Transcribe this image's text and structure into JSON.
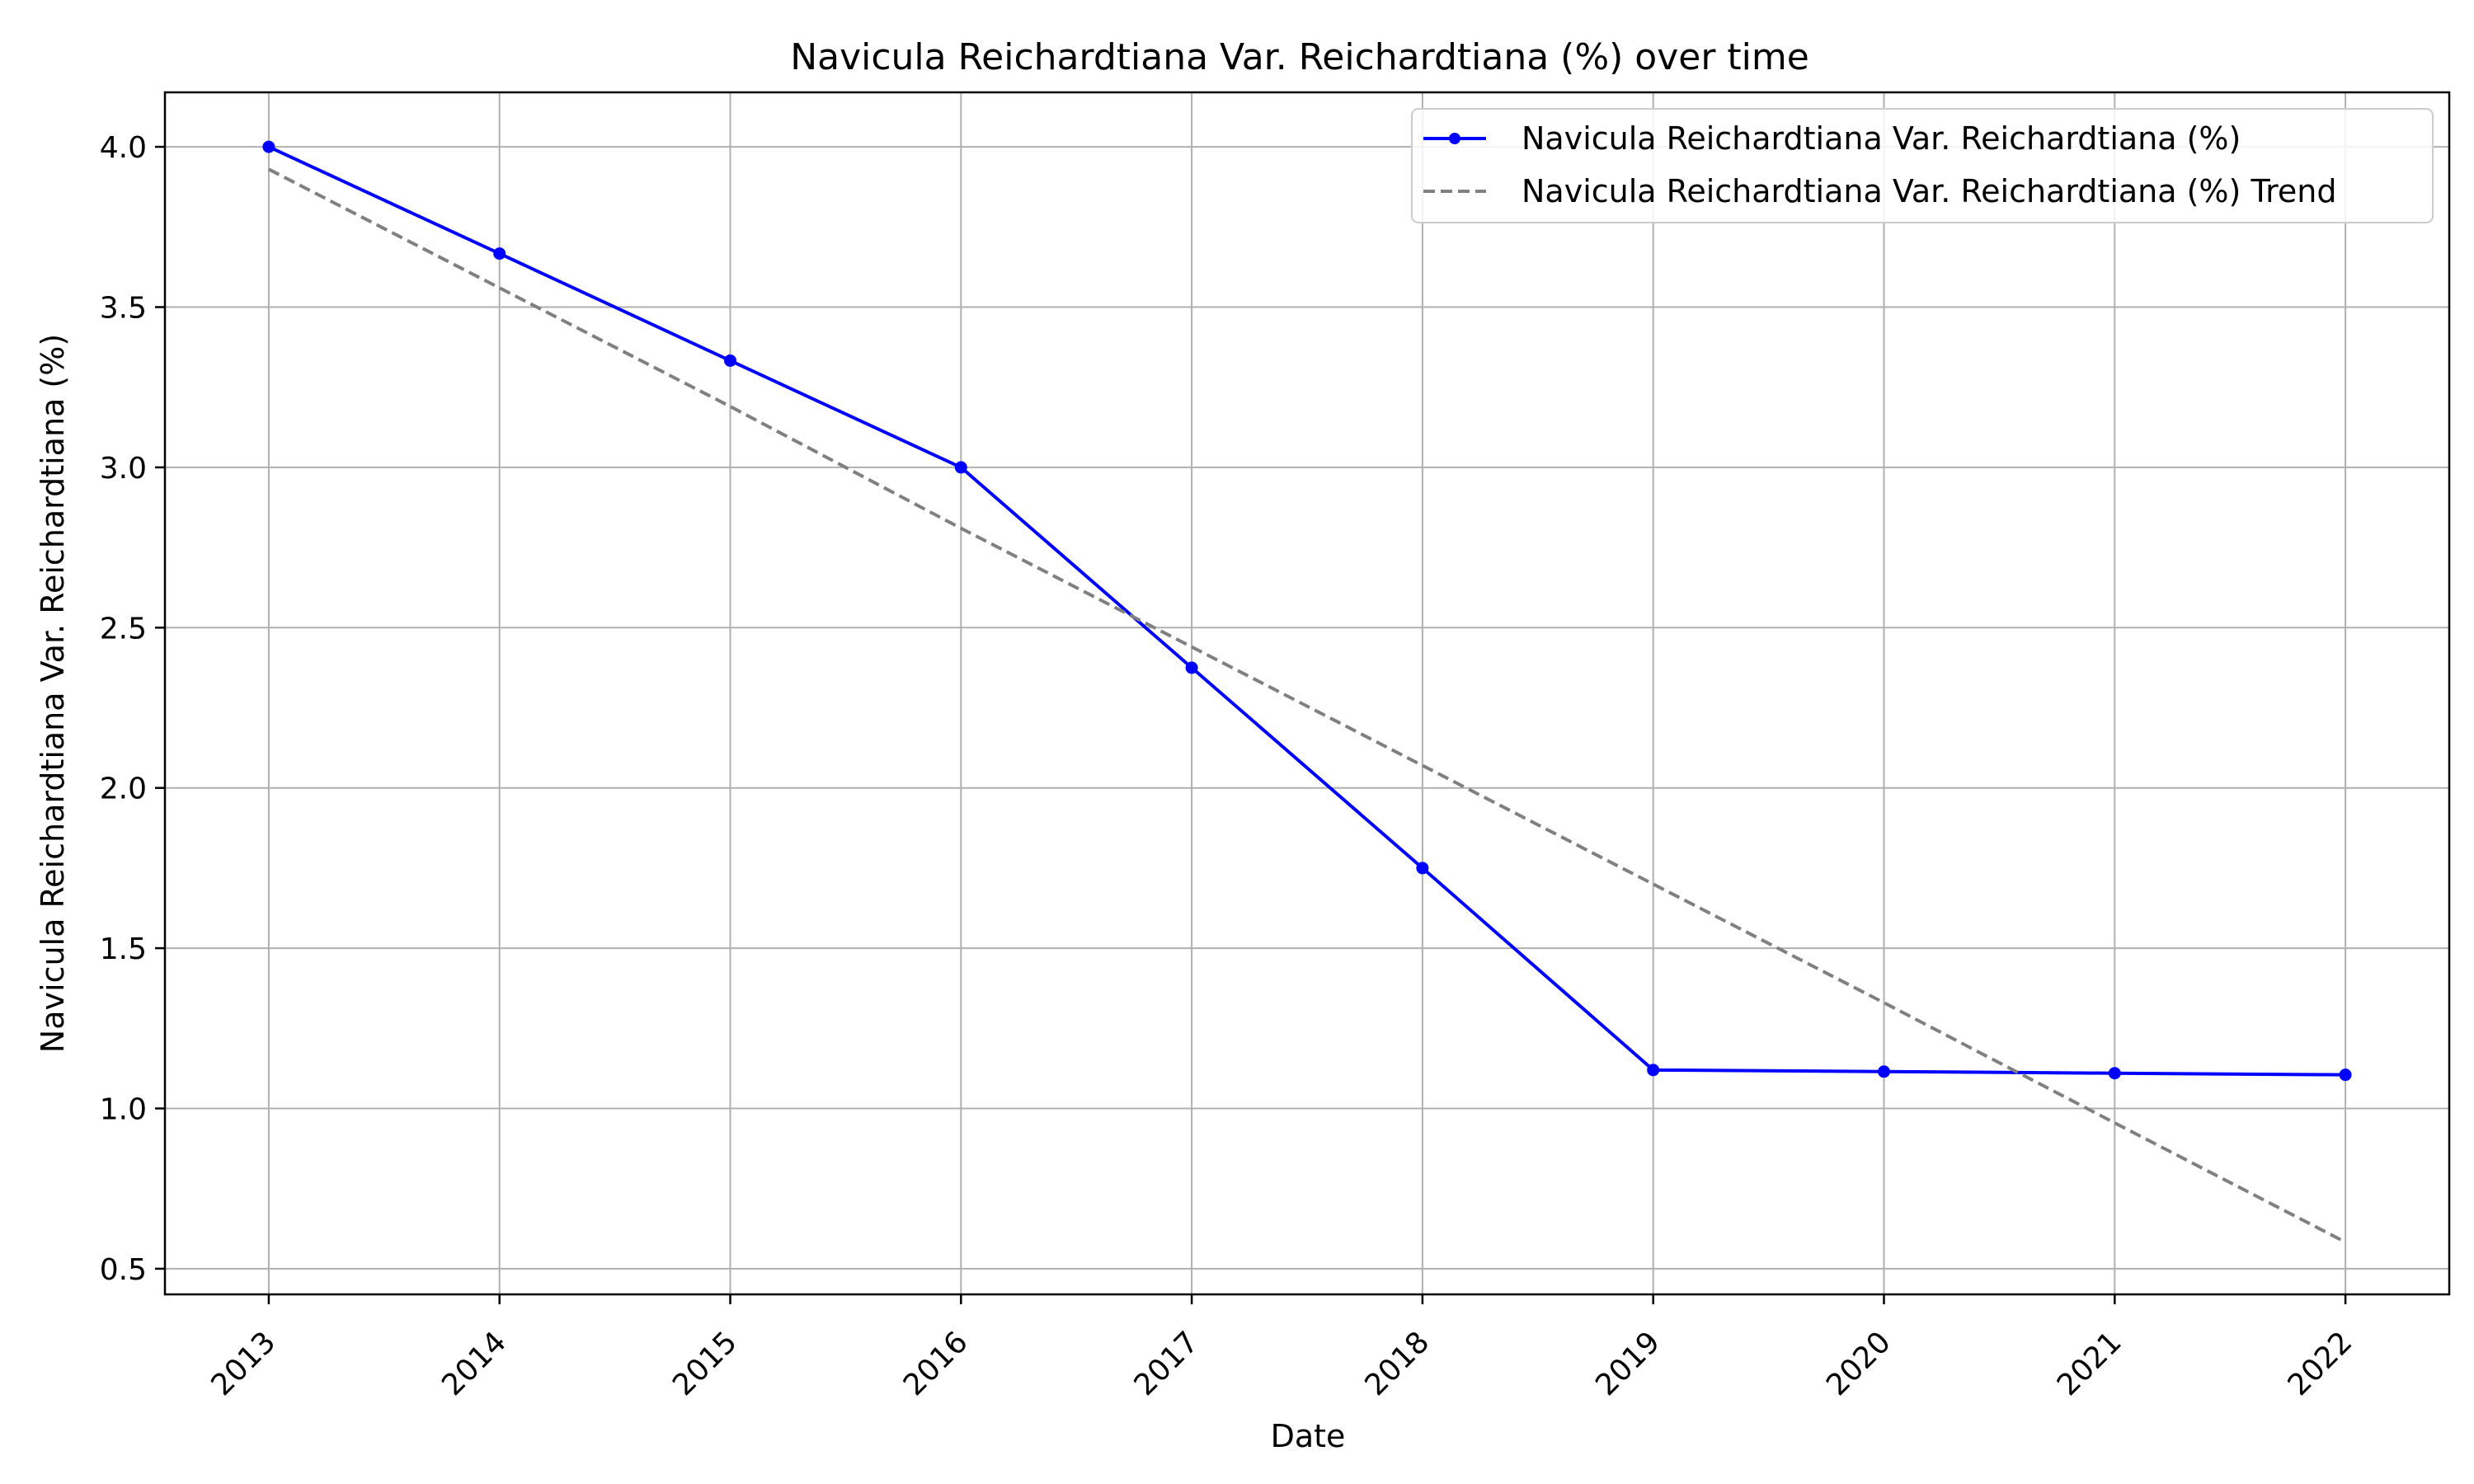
{
  "chart_data": {
    "type": "line",
    "title": "Navicula Reichardtiana Var. Reichardtiana (%) over time",
    "xlabel": "Date",
    "ylabel": "Navicula Reichardtiana Var. Reichardtiana (%)",
    "x": [
      "2013",
      "2014",
      "2015",
      "2016",
      "2017",
      "2018",
      "2019",
      "2020",
      "2021",
      "2022"
    ],
    "x_tick_labels": [
      "2013",
      "2014",
      "2015",
      "2016",
      "2017",
      "2018",
      "2019",
      "2020",
      "2021",
      "2022"
    ],
    "y_tick_labels": [
      "0.5",
      "1.0",
      "1.5",
      "2.0",
      "2.5",
      "3.0",
      "3.5",
      "4.0"
    ],
    "y_ticks": [
      0.5,
      1.0,
      1.5,
      2.0,
      2.5,
      3.0,
      3.5,
      4.0
    ],
    "ylim": [
      0.42,
      4.17
    ],
    "xlim": [
      2012.55,
      2022.45
    ],
    "grid": true,
    "legend_position": "upper-right",
    "series": [
      {
        "name": "Navicula Reichardtiana Var. Reichardtiana (%)",
        "style": "solid-with-markers",
        "color": "#0000ff",
        "values": [
          4.0,
          3.667,
          3.333,
          3.0,
          2.375,
          1.75,
          1.12,
          1.115,
          1.11,
          1.105
        ]
      },
      {
        "name": "Navicula Reichardtiana Var. Reichardtiana (%) Trend",
        "style": "dashed",
        "color": "#808080",
        "values": [
          3.93,
          3.56,
          3.19,
          2.81,
          2.44,
          2.07,
          1.7,
          1.33,
          0.955,
          0.583
        ]
      }
    ]
  }
}
